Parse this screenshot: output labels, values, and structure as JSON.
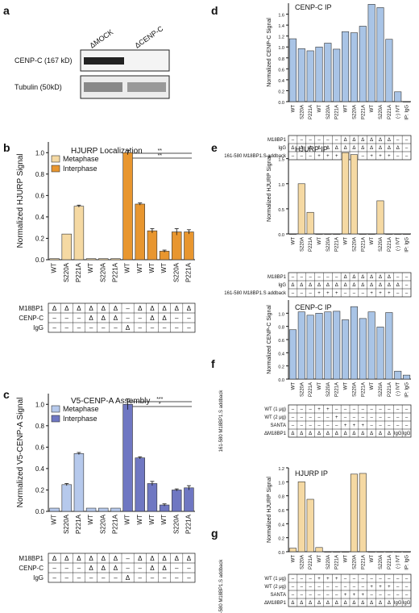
{
  "colors": {
    "lightOrange": "#f5d9a3",
    "orange": "#e8962f",
    "lightBlue": "#b6c9ec",
    "darkBlue": "#6f77c2",
    "paleBlue": "#a9c4e6",
    "barStroke": "#333333"
  },
  "panel_a": {
    "letter": "a",
    "lanes": [
      "ΔMOCK",
      "ΔCENP-C"
    ],
    "bands": [
      "CENP-C (167 kD)",
      "Tubulin (50kD)"
    ]
  },
  "chart_data": [
    {
      "id": "b",
      "type": "bar",
      "letter": "b",
      "title": "HJURP Localization",
      "ylabel": "Normalized HJURP Signal",
      "ylim": [
        0,
        1.1
      ],
      "yticks": [
        "0.0",
        "0.2",
        "0.4",
        "0.6",
        "0.8",
        "1.0"
      ],
      "legend": [
        "Metaphase",
        "Interphase"
      ],
      "categories": [
        "WT",
        "S220A",
        "P221A",
        "WT",
        "S220A",
        "P221A",
        "WT",
        "WT",
        "WT",
        "WT",
        "S220A",
        "P221A"
      ],
      "values": [
        0.01,
        0.24,
        0.5,
        0.01,
        0.01,
        0.01,
        1.0,
        0.52,
        0.27,
        0.08,
        0.26,
        0.26
      ],
      "errors": [
        0,
        0,
        0.01,
        0,
        0,
        0,
        0.02,
        0.01,
        0.02,
        0.01,
        0.03,
        0.02
      ],
      "series_idx": [
        0,
        0,
        0,
        0,
        0,
        0,
        1,
        1,
        1,
        1,
        1,
        1
      ],
      "sig": [
        "**",
        "**"
      ],
      "table": {
        "rows": [
          {
            "label": "M18BP1",
            "cells": [
              "Δ",
              "Δ",
              "Δ",
              "Δ",
              "Δ",
              "Δ",
              "–",
              "Δ",
              "Δ",
              "Δ",
              "Δ",
              "Δ"
            ]
          },
          {
            "label": "CENP-C",
            "cells": [
              "–",
              "–",
              "–",
              "Δ",
              "Δ",
              "Δ",
              "–",
              "–",
              "Δ",
              "Δ",
              "–",
              "–"
            ]
          },
          {
            "label": "IgG",
            "cells": [
              "–",
              "–",
              "–",
              "–",
              "–",
              "–",
              "Δ",
              "–",
              "–",
              "–",
              "–",
              "–"
            ]
          }
        ]
      }
    },
    {
      "id": "c",
      "type": "bar",
      "letter": "c",
      "title": "V5-CENP-A Assembly",
      "ylabel": "Normalized V5-CENP-A Signal",
      "ylim": [
        0,
        1.1
      ],
      "yticks": [
        "0.0",
        "0.2",
        "0.4",
        "0.6",
        "0.8",
        "1.0"
      ],
      "legend": [
        "Metaphase",
        "Interphase"
      ],
      "categories": [
        "WT",
        "S220A",
        "P221A",
        "WT",
        "S220A",
        "P221A",
        "WT",
        "WT",
        "WT",
        "WT",
        "S220A",
        "P221A"
      ],
      "values": [
        0.03,
        0.25,
        0.54,
        0.03,
        0.03,
        0.03,
        1.0,
        0.5,
        0.26,
        0.06,
        0.2,
        0.22
      ],
      "errors": [
        0,
        0.01,
        0.01,
        0,
        0,
        0,
        0.05,
        0.01,
        0.02,
        0.01,
        0.01,
        0.02
      ],
      "series_idx": [
        0,
        0,
        0,
        0,
        0,
        0,
        1,
        1,
        1,
        1,
        1,
        1
      ],
      "sig": [
        "***",
        "*"
      ],
      "table": {
        "rows": [
          {
            "label": "M18BP1",
            "cells": [
              "Δ",
              "Δ",
              "Δ",
              "Δ",
              "Δ",
              "Δ",
              "–",
              "Δ",
              "Δ",
              "Δ",
              "Δ",
              "Δ"
            ]
          },
          {
            "label": "CENP-C",
            "cells": [
              "–",
              "–",
              "–",
              "Δ",
              "Δ",
              "Δ",
              "–",
              "–",
              "Δ",
              "Δ",
              "–",
              "–"
            ]
          },
          {
            "label": "IgG",
            "cells": [
              "–",
              "–",
              "–",
              "–",
              "–",
              "–",
              "Δ",
              "–",
              "–",
              "–",
              "–",
              "–"
            ]
          }
        ]
      }
    },
    {
      "id": "d",
      "type": "bar",
      "letter": "d",
      "title": "CENP-C IP",
      "ylabel": "Normalized CENP-C Signal",
      "ylim": [
        0,
        1.8
      ],
      "yticks": [
        "0.0",
        "0.2",
        "0.4",
        "0.6",
        "0.8",
        "1.0",
        "1.2",
        "1.4",
        "1.6"
      ],
      "categories": [
        "WT",
        "S220A",
        "P221A",
        "WT",
        "S220A",
        "P221A",
        "WT",
        "S220A",
        "P221A",
        "WT",
        "S220A",
        "P221A",
        "(-) IVT",
        "IP: IgG"
      ],
      "values": [
        1.15,
        0.97,
        0.93,
        1.0,
        1.07,
        0.96,
        1.28,
        1.26,
        1.38,
        1.78,
        1.72,
        1.14,
        0.18,
        0.0
      ],
      "table": {
        "rows": [
          {
            "label": "M18BP1",
            "cells": [
              "–",
              "–",
              "–",
              "–",
              "–",
              "–",
              "Δ",
              "Δ",
              "Δ",
              "Δ",
              "Δ",
              "Δ",
              "–",
              "–"
            ]
          },
          {
            "label": "IgG",
            "cells": [
              "Δ",
              "Δ",
              "Δ",
              "Δ",
              "Δ",
              "Δ",
              "Δ",
              "Δ",
              "Δ",
              "Δ",
              "Δ",
              "Δ",
              "Δ",
              "–"
            ]
          },
          {
            "label": "161-580 M18BP1.S addback",
            "cells": [
              "–",
              "–",
              "–",
              "+",
              "+",
              "+",
              "–",
              "–",
              "–",
              "+",
              "+",
              "+",
              "–",
              "–"
            ]
          }
        ]
      }
    },
    {
      "id": "e",
      "type": "bar",
      "letter": "e",
      "title": "HJURP IP",
      "ylabel": "Normalized HJURP Signal",
      "ylim": [
        0,
        1.8
      ],
      "yticks": [
        "0.0",
        "0.5",
        "1.0",
        "1.5"
      ],
      "categories": [
        "WT",
        "S220A",
        "P221A",
        "WT",
        "S220A",
        "P221A",
        "WT",
        "S220A",
        "P221A",
        "WT",
        "S220A",
        "P221A",
        "(-) IVT",
        "IP: IgG"
      ],
      "values": [
        0.0,
        1.0,
        0.43,
        0.0,
        0.0,
        0.0,
        1.62,
        1.58,
        0.0,
        0.0,
        0.66,
        0.0,
        0.0,
        0.0
      ],
      "table": {
        "rows": [
          {
            "label": "M18BP1",
            "cells": [
              "–",
              "–",
              "–",
              "–",
              "–",
              "–",
              "Δ",
              "Δ",
              "Δ",
              "Δ",
              "Δ",
              "Δ",
              "–",
              "–"
            ]
          },
          {
            "label": "IgG",
            "cells": [
              "Δ",
              "Δ",
              "Δ",
              "Δ",
              "Δ",
              "Δ",
              "Δ",
              "Δ",
              "Δ",
              "Δ",
              "Δ",
              "Δ",
              "Δ",
              "–"
            ]
          },
          {
            "label": "161-580 M18BP1.S addback",
            "cells": [
              "–",
              "–",
              "–",
              "+",
              "+",
              "+",
              "–",
              "–",
              "–",
              "+",
              "+",
              "+",
              "–",
              "–"
            ]
          }
        ]
      }
    },
    {
      "id": "f",
      "type": "bar",
      "letter": "f",
      "title": "CENP-C IP",
      "ylabel": "Normalized CENP-C Signal",
      "ylim": [
        0,
        1.2
      ],
      "yticks": [
        "0.0",
        "0.2",
        "0.4",
        "0.6",
        "0.8",
        "1.0"
      ],
      "categories": [
        "WT",
        "S220A",
        "P221A",
        "WT",
        "S220A",
        "P221A",
        "WT",
        "S220A",
        "P221A",
        "WT",
        "S220A",
        "P221A",
        "(-) IVT",
        "IP: IgG"
      ],
      "values": [
        0.75,
        1.02,
        0.97,
        1.0,
        1.02,
        1.03,
        0.9,
        1.1,
        0.92,
        1.02,
        0.79,
        1.01,
        0.12,
        0.06
      ],
      "side_label": "161-580 M18BP1.S addback",
      "table": {
        "rows": [
          {
            "label": "WT (1 μg)",
            "cells": [
              "–",
              "–",
              "–",
              "+",
              "+",
              "–",
              "–",
              "–",
              "–",
              "–",
              "–",
              "–",
              "–",
              "–"
            ]
          },
          {
            "label": "WT (2 μg)",
            "cells": [
              "–",
              "–",
              "–",
              "–",
              "–",
              "+",
              "–",
              "–",
              "–",
              "–",
              "–",
              "–",
              "–",
              "–"
            ]
          },
          {
            "label": "SANTA",
            "cells": [
              "–",
              "–",
              "–",
              "–",
              "–",
              "–",
              "+",
              "+",
              "+",
              "–",
              "–",
              "–",
              "–",
              "–"
            ]
          },
          {
            "label": "ΔM18BP1",
            "cells": [
              "Δ",
              "Δ",
              "Δ",
              "Δ",
              "Δ",
              "Δ",
              "Δ",
              "Δ",
              "Δ",
              "Δ",
              "Δ",
              "Δ",
              "IgG",
              "IgG"
            ]
          }
        ]
      }
    },
    {
      "id": "g",
      "type": "bar",
      "letter": "g",
      "title": "HJURP IP",
      "ylabel": "Normalized HJURP Signal",
      "ylim": [
        0,
        1.2
      ],
      "yticks": [
        "0.0",
        "0.2",
        "0.4",
        "0.6",
        "0.8",
        "1.0",
        "1.2"
      ],
      "categories": [
        "WT",
        "S220A",
        "P221A",
        "WT",
        "S220A",
        "P221A",
        "WT",
        "S220A",
        "P221A",
        "WT",
        "S220A",
        "P221A",
        "(-) IVT",
        "IP: IgG"
      ],
      "values": [
        0.05,
        1.0,
        0.75,
        0.06,
        0.0,
        0.0,
        0.0,
        1.11,
        1.12,
        0.0,
        0.0,
        0.0,
        0.0,
        0.0
      ],
      "side_label": "161-580 M18BP1.S addback",
      "table": {
        "rows": [
          {
            "label": "WT (1 μg)",
            "cells": [
              "–",
              "–",
              "–",
              "+",
              "+",
              "+",
              "–",
              "–",
              "–",
              "–",
              "–",
              "–",
              "–",
              "–"
            ]
          },
          {
            "label": "WT (2 μg)",
            "cells": [
              "–",
              "–",
              "–",
              "–",
              "–",
              "–",
              "–",
              "–",
              "–",
              "+",
              "+",
              "+",
              "–",
              "–"
            ]
          },
          {
            "label": "SANTA",
            "cells": [
              "–",
              "–",
              "–",
              "–",
              "–",
              "–",
              "+",
              "+",
              "+",
              "–",
              "–",
              "–",
              "–",
              "–"
            ]
          },
          {
            "label": "ΔM18BP1",
            "cells": [
              "Δ",
              "Δ",
              "Δ",
              "Δ",
              "Δ",
              "Δ",
              "Δ",
              "Δ",
              "Δ",
              "Δ",
              "Δ",
              "Δ",
              "IgG",
              "IgG"
            ]
          }
        ]
      }
    }
  ]
}
